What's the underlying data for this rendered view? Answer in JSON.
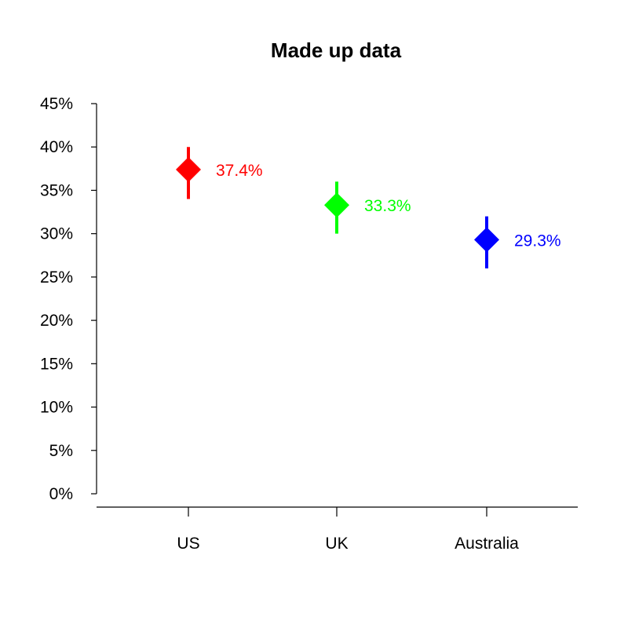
{
  "chart_data": {
    "type": "scatter",
    "title": "Made up data",
    "xlabel": "",
    "ylabel": "",
    "categories": [
      "US",
      "UK",
      "Australia"
    ],
    "values": [
      37.4,
      33.3,
      29.3
    ],
    "error_low": [
      34.0,
      30.0,
      26.0
    ],
    "error_high": [
      40.0,
      36.0,
      32.0
    ],
    "value_labels": [
      "37.4%",
      "33.3%",
      "29.3%"
    ],
    "colors": [
      "#ff0000",
      "#00ff00",
      "#0000ff"
    ],
    "marker": "diamond",
    "ylim": [
      0,
      45
    ],
    "yticks": [
      0,
      5,
      10,
      15,
      20,
      25,
      30,
      35,
      40,
      45
    ],
    "ytick_labels": [
      "0%",
      "5%",
      "10%",
      "15%",
      "20%",
      "25%",
      "30%",
      "35%",
      "40%",
      "45%"
    ],
    "grid": false,
    "legend": "none"
  }
}
